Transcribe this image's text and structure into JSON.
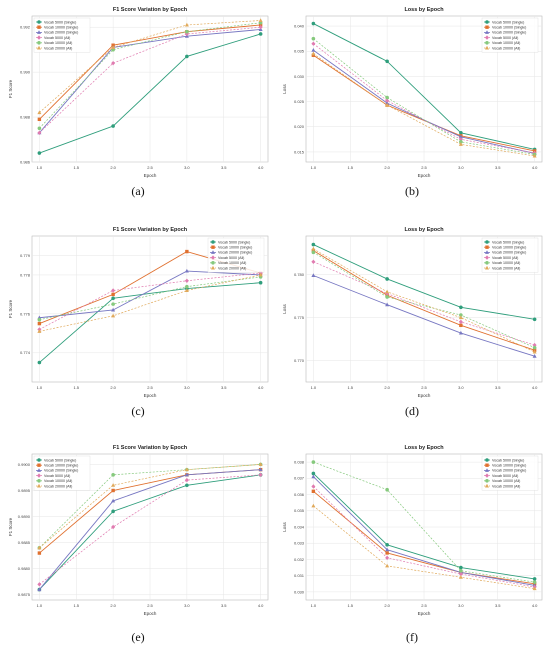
{
  "captions": [
    "(a)",
    "(b)",
    "(c)",
    "(d)",
    "(e)",
    "(f)"
  ],
  "colors": {
    "green": "#2f9e7c",
    "orange": "#e0702f",
    "purple": "#7777c2",
    "pink": "#e07bb0",
    "lime": "#86c97d",
    "yellow": "#e0a95a",
    "grid": "#e6e6e6"
  },
  "chart_data": [
    {
      "type": "line",
      "title": "F1 Score Variation by Epoch",
      "xlabel": "Epoch",
      "ylabel": "F1 Score",
      "x": [
        1,
        2,
        3,
        4
      ],
      "xlim": [
        0.9,
        4.1
      ],
      "ylim": [
        0.986,
        0.9925
      ],
      "xticks": [
        "1.0",
        "1.5",
        "2.0",
        "2.5",
        "3.0",
        "3.5",
        "4.0"
      ],
      "yticks": [
        "0.986",
        "0.988",
        "0.990",
        "0.992"
      ],
      "legend": "top-left",
      "grid": true,
      "series": [
        {
          "name": "Vocab 5000 (Single)",
          "values": [
            0.9864,
            0.9876,
            0.9907,
            0.9917
          ]
        },
        {
          "name": "Vocab 10000 (Single)",
          "values": [
            0.9879,
            0.9912,
            0.9918,
            0.9921
          ]
        },
        {
          "name": "Vocab 20000 (Single)",
          "values": [
            0.9873,
            0.9911,
            0.9916,
            0.9919
          ]
        },
        {
          "name": "Vocab 5000 (All)",
          "values": [
            0.9873,
            0.9904,
            0.9917,
            0.992
          ]
        },
        {
          "name": "Vocab 10000 (All)",
          "values": [
            0.9875,
            0.991,
            0.9918,
            0.9922
          ]
        },
        {
          "name": "Vocab 20000 (All)",
          "values": [
            0.9882,
            0.9911,
            0.9921,
            0.9923
          ]
        }
      ]
    },
    {
      "type": "line",
      "title": "Loss by Epoch",
      "xlabel": "Epoch",
      "ylabel": "Loss",
      "x": [
        1,
        2,
        3,
        4
      ],
      "xlim": [
        0.9,
        4.1
      ],
      "ylim": [
        0.013,
        0.042
      ],
      "xticks": [
        "1.0",
        "1.5",
        "2.0",
        "2.5",
        "3.0",
        "3.5",
        "4.0"
      ],
      "yticks": [
        "0.015",
        "0.020",
        "0.025",
        "0.030",
        "0.035",
        "0.040"
      ],
      "legend": "top-right",
      "grid": true,
      "series": [
        {
          "name": "Vocab 5000 (Single)",
          "values": [
            0.0405,
            0.033,
            0.0188,
            0.0155
          ]
        },
        {
          "name": "Vocab 10000 (Single)",
          "values": [
            0.0342,
            0.0243,
            0.0182,
            0.0152
          ]
        },
        {
          "name": "Vocab 20000 (Single)",
          "values": [
            0.0352,
            0.0247,
            0.018,
            0.0147
          ]
        },
        {
          "name": "Vocab 5000 (All)",
          "values": [
            0.0365,
            0.0252,
            0.0175,
            0.0148
          ]
        },
        {
          "name": "Vocab 10000 (All)",
          "values": [
            0.0375,
            0.0258,
            0.017,
            0.0145
          ]
        },
        {
          "name": "Vocab 20000 (All)",
          "values": [
            0.0345,
            0.0243,
            0.0165,
            0.0142
          ]
        }
      ]
    },
    {
      "type": "line",
      "title": "F1 Score Variation by Epoch",
      "xlabel": "Epoch",
      "ylabel": "F1 Score",
      "x": [
        1,
        2,
        3,
        4
      ],
      "xlim": [
        0.9,
        4.1
      ],
      "ylim": [
        0.7725,
        0.78
      ],
      "xticks": [
        "1.0",
        "1.5",
        "2.0",
        "2.5",
        "3.0",
        "3.5",
        "4.0"
      ],
      "yticks": [
        "0.774",
        "0.776",
        "0.778",
        "0.779"
      ],
      "legend": "top-right",
      "grid": true,
      "series": [
        {
          "name": "Vocab 5000 (Single)",
          "values": [
            0.7735,
            0.7768,
            0.7773,
            0.7776
          ]
        },
        {
          "name": "Vocab 10000 (Single)",
          "values": [
            0.7755,
            0.777,
            0.7792,
            0.7781
          ]
        },
        {
          "name": "Vocab 20000 (Single)",
          "values": [
            0.7758,
            0.7762,
            0.7782,
            0.778
          ]
        },
        {
          "name": "Vocab 5000 (All)",
          "values": [
            0.7752,
            0.7772,
            0.7777,
            0.7781
          ]
        },
        {
          "name": "Vocab 10000 (All)",
          "values": [
            0.7757,
            0.7765,
            0.7774,
            0.7779
          ]
        },
        {
          "name": "Vocab 20000 (All)",
          "values": [
            0.7751,
            0.7759,
            0.7772,
            0.778
          ]
        }
      ]
    },
    {
      "type": "line",
      "title": "Loss by Epoch",
      "xlabel": "Epoch",
      "ylabel": "Loss",
      "x": [
        1,
        2,
        3,
        4
      ],
      "xlim": [
        0.9,
        4.1
      ],
      "ylim": [
        0.7675,
        0.7845
      ],
      "xticks": [
        "1.0",
        "1.5",
        "2.0",
        "2.5",
        "3.0",
        "3.5",
        "4.0"
      ],
      "yticks": [
        "0.770",
        "0.775",
        "0.780"
      ],
      "legend": "top-right",
      "grid": true,
      "series": [
        {
          "name": "Vocab 5000 (Single)",
          "values": [
            0.7835,
            0.7795,
            0.7762,
            0.7748
          ]
        },
        {
          "name": "Vocab 10000 (Single)",
          "values": [
            0.7828,
            0.7776,
            0.7741,
            0.7712
          ]
        },
        {
          "name": "Vocab 20000 (Single)",
          "values": [
            0.7799,
            0.7765,
            0.7732,
            0.7705
          ]
        },
        {
          "name": "Vocab 5000 (All)",
          "values": [
            0.7815,
            0.7778,
            0.7745,
            0.7718
          ]
        },
        {
          "name": "Vocab 10000 (All)",
          "values": [
            0.7826,
            0.7774,
            0.7753,
            0.7715
          ]
        },
        {
          "name": "Vocab 20000 (All)",
          "values": [
            0.783,
            0.778,
            0.775,
            0.771
          ]
        }
      ]
    },
    {
      "type": "line",
      "title": "F1 Score Variation by Epoch",
      "xlabel": "Epoch",
      "ylabel": "F1 Score",
      "x": [
        1,
        2,
        3,
        4
      ],
      "xlim": [
        0.9,
        4.1
      ],
      "ylim": [
        0.9874,
        0.9902
      ],
      "xticks": [
        "1.0",
        "1.5",
        "2.0",
        "2.5",
        "3.0",
        "3.5",
        "4.0"
      ],
      "yticks": [
        "0.9875",
        "0.9880",
        "0.9885",
        "0.9890",
        "0.9895",
        "0.9900"
      ],
      "legend": "top-left",
      "grid": true,
      "series": [
        {
          "name": "Vocab 5000 (Single)",
          "values": [
            0.9876,
            0.9891,
            0.9896,
            0.9898
          ]
        },
        {
          "name": "Vocab 10000 (Single)",
          "values": [
            0.9883,
            0.9895,
            0.9898,
            0.9899
          ]
        },
        {
          "name": "Vocab 20000 (Single)",
          "values": [
            0.9876,
            0.9893,
            0.9898,
            0.9899
          ]
        },
        {
          "name": "Vocab 5000 (All)",
          "values": [
            0.9877,
            0.9888,
            0.9897,
            0.9898
          ]
        },
        {
          "name": "Vocab 10000 (All)",
          "values": [
            0.9884,
            0.9898,
            0.9899,
            0.99
          ]
        },
        {
          "name": "Vocab 20000 (All)",
          "values": [
            0.9884,
            0.9896,
            0.9899,
            0.99
          ]
        }
      ]
    },
    {
      "type": "line",
      "title": "Loss by Epoch",
      "xlabel": "Epoch",
      "ylabel": "Loss",
      "x": [
        1,
        2,
        3,
        4
      ],
      "xlim": [
        0.9,
        4.1
      ],
      "ylim": [
        0.0295,
        0.0385
      ],
      "xticks": [
        "1.0",
        "1.5",
        "2.0",
        "2.5",
        "3.0",
        "3.5",
        "4.0"
      ],
      "yticks": [
        "0.030",
        "0.031",
        "0.032",
        "0.033",
        "0.034",
        "0.035",
        "0.036",
        "0.037",
        "0.038"
      ],
      "legend": "top-right",
      "grid": true,
      "series": [
        {
          "name": "Vocab 5000 (Single)",
          "values": [
            0.0373,
            0.0329,
            0.0315,
            0.0308
          ]
        },
        {
          "name": "Vocab 10000 (Single)",
          "values": [
            0.0362,
            0.0324,
            0.0312,
            0.0305
          ]
        },
        {
          "name": "Vocab 20000 (Single)",
          "values": [
            0.0371,
            0.0326,
            0.0312,
            0.0304
          ]
        },
        {
          "name": "Vocab 5000 (All)",
          "values": [
            0.0365,
            0.0321,
            0.0311,
            0.0303
          ]
        },
        {
          "name": "Vocab 10000 (All)",
          "values": [
            0.038,
            0.0363,
            0.0313,
            0.0306
          ]
        },
        {
          "name": "Vocab 20000 (All)",
          "values": [
            0.0353,
            0.0316,
            0.0309,
            0.0302
          ]
        }
      ]
    }
  ]
}
